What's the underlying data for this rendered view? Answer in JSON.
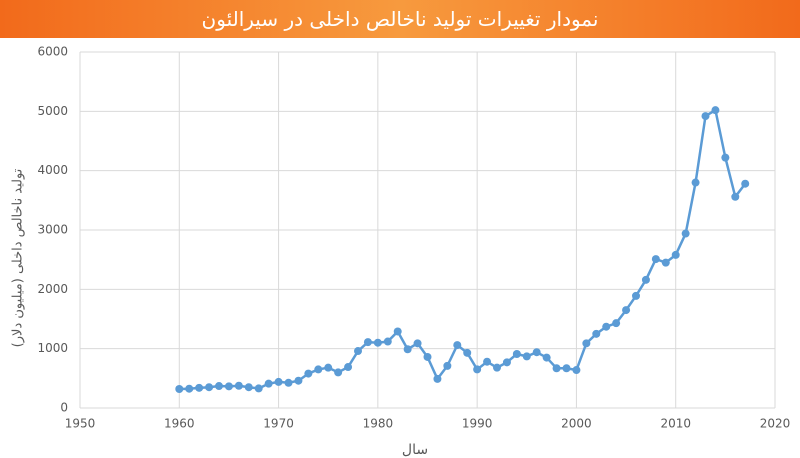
{
  "chart_data": {
    "type": "line",
    "title": "نمودار تغییرات تولید ناخالص داخلی در سیرالئون",
    "x_label": "سال",
    "y_label": "تولید ناخالص داخلی (میلیون دلار)",
    "x": [
      1960,
      1961,
      1962,
      1963,
      1964,
      1965,
      1966,
      1967,
      1968,
      1969,
      1970,
      1971,
      1972,
      1973,
      1974,
      1975,
      1976,
      1977,
      1978,
      1979,
      1980,
      1981,
      1982,
      1983,
      1984,
      1985,
      1986,
      1987,
      1988,
      1989,
      1990,
      1991,
      1992,
      1993,
      1994,
      1995,
      1996,
      1997,
      1998,
      1999,
      2000,
      2001,
      2002,
      2003,
      2004,
      2005,
      2006,
      2007,
      2008,
      2009,
      2010,
      2011,
      2012,
      2013,
      2014,
      2015,
      2016,
      2017
    ],
    "values": [
      320,
      325,
      340,
      350,
      370,
      365,
      375,
      350,
      330,
      410,
      440,
      425,
      460,
      580,
      650,
      680,
      600,
      690,
      960,
      1110,
      1100,
      1120,
      1290,
      990,
      1090,
      860,
      490,
      710,
      1060,
      930,
      650,
      780,
      680,
      770,
      910,
      870,
      940,
      850,
      670,
      670,
      640,
      1090,
      1250,
      1370,
      1430,
      1650,
      1890,
      2160,
      2510,
      2450,
      2580,
      2940,
      3800,
      4920,
      5020,
      4220,
      3560,
      3780
    ],
    "color": "#5b9bd5",
    "xlim": [
      1950,
      2020
    ],
    "xticks": [
      1950,
      1960,
      1970,
      1980,
      1990,
      2000,
      2010,
      2020
    ],
    "ylim": [
      0,
      6000
    ],
    "yticks": [
      0,
      1000,
      2000,
      3000,
      4000,
      5000,
      6000
    ],
    "grid": true
  }
}
